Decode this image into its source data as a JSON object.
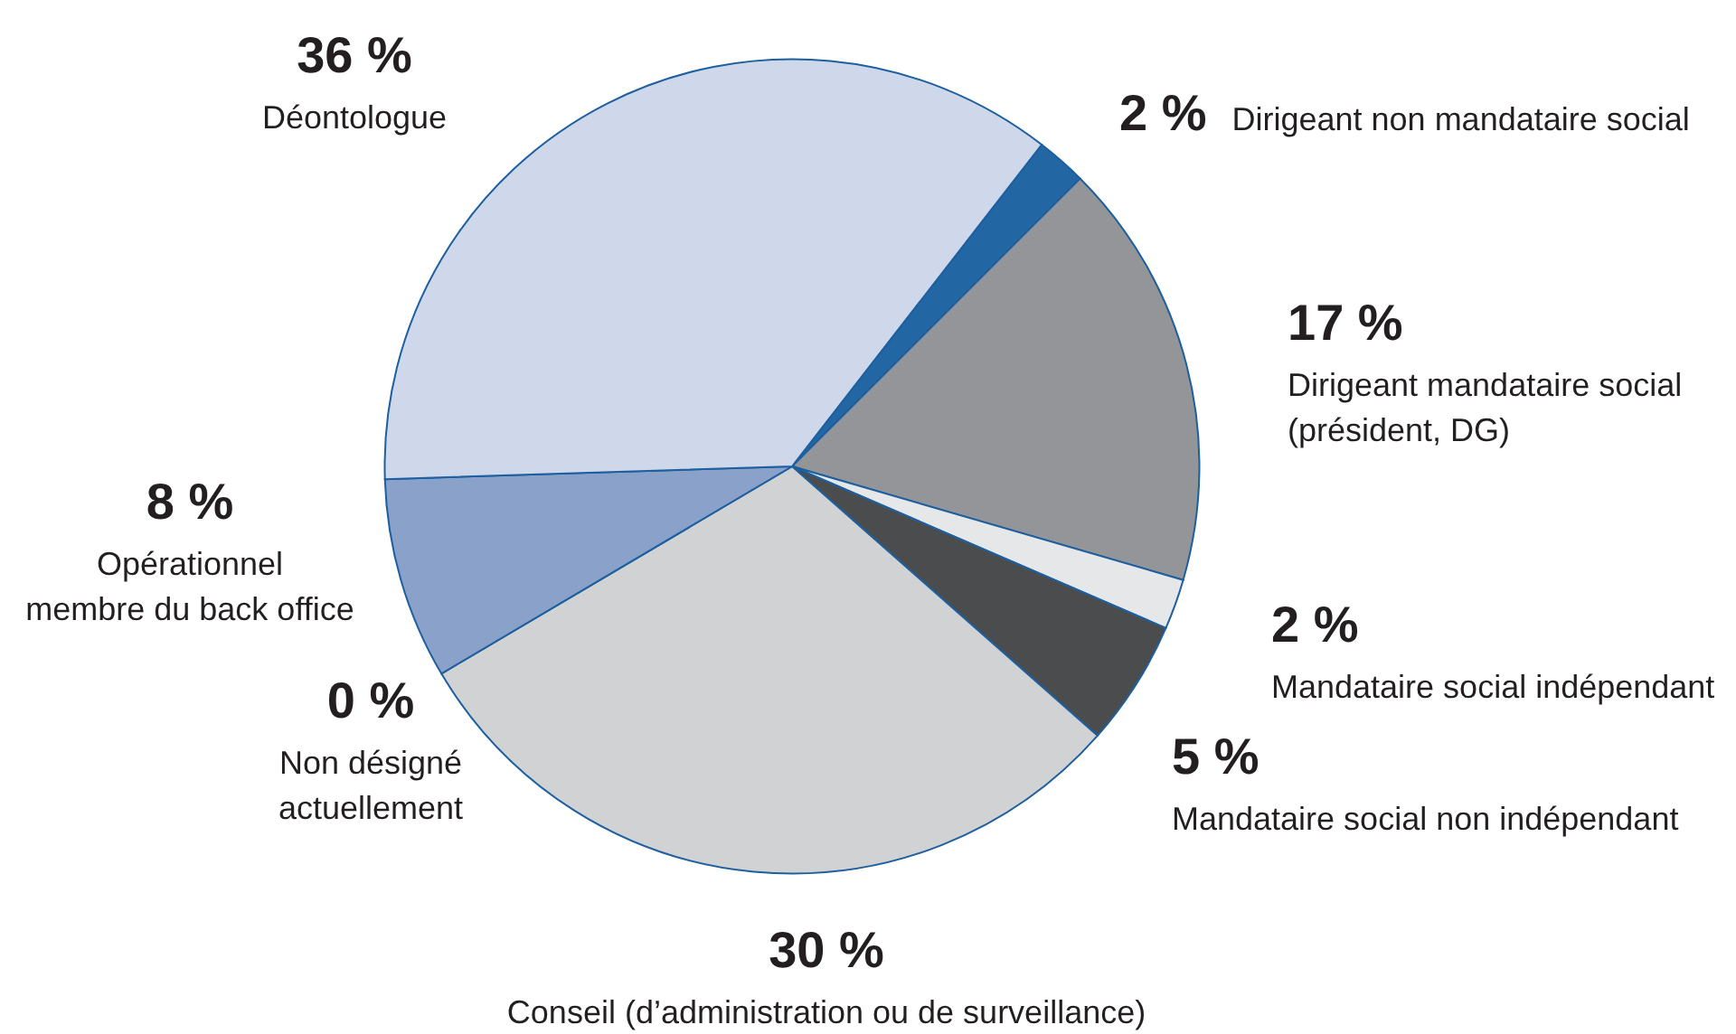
{
  "chart_data": {
    "type": "pie",
    "categories": [
      "Dirigeant non mandataire social",
      "Dirigeant mandataire social\n(président, DG)",
      "Mandataire social indépendant",
      "Mandataire social non indépendant",
      "Conseil (d’administration ou de surveillance)",
      "Non désigné\nactuellement",
      "Opérationnel\nmembre du back office",
      "Déontologue"
    ],
    "values": [
      2,
      17,
      2,
      5,
      30,
      0,
      8,
      36
    ],
    "value_labels": [
      "2 %",
      "17 %",
      "2 %",
      "5 %",
      "30 %",
      "0 %",
      "8 %",
      "36 %"
    ],
    "colors": [
      "#2366a4",
      "#939598",
      "#e6e7e8",
      "#4b4c4e",
      "#d0d2d3",
      "#231f20",
      "#8aa2ca",
      "#ced8ea"
    ]
  }
}
